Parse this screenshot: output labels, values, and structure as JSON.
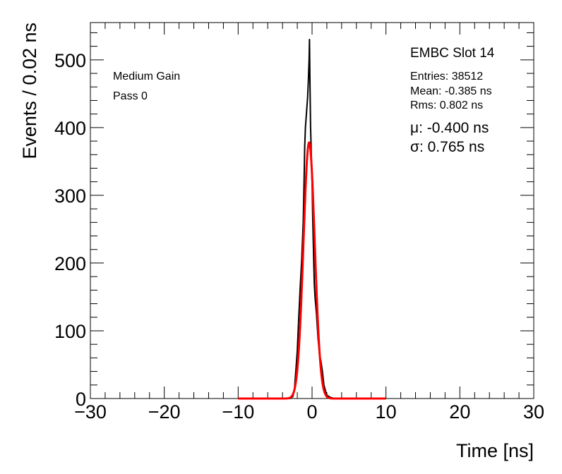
{
  "chart_data": {
    "type": "line",
    "title": "",
    "xlabel": "Time [ns]",
    "ylabel": "Events / 0.02 ns",
    "xlim": [
      -30,
      30
    ],
    "ylim": [
      0,
      555
    ],
    "x_ticks": [
      -30,
      -20,
      -10,
      0,
      10,
      20,
      30
    ],
    "x_tick_labels": [
      "−30",
      "−20",
      "−10",
      "0",
      "10",
      "20",
      "30"
    ],
    "y_ticks": [
      0,
      100,
      200,
      300,
      400,
      500
    ],
    "y_tick_labels": [
      "0",
      "100",
      "200",
      "300",
      "400",
      "500"
    ],
    "grid": false,
    "annotations": {
      "gain": "Medium Gain",
      "pass": "Pass 0",
      "slot": "EMBC Slot 14",
      "entries": "Entries: 38512",
      "mean": "Mean: -0.385 ns",
      "rms": "Rms: 0.802 ns",
      "mu": "μ: -0.400 ns",
      "sigma": "σ: 0.765 ns"
    },
    "series": [
      {
        "color": "#000000",
        "x": [
          -10,
          -3.0,
          -2.6,
          -2.4,
          -2.2,
          -2.0,
          -1.8,
          -1.6,
          -1.4,
          -1.2,
          -1.1,
          -1.0,
          -0.9,
          -0.8,
          -0.7,
          -0.6,
          -0.5,
          -0.4,
          -0.35,
          -0.3,
          -0.25,
          -0.2,
          -0.1,
          0.0,
          0.1,
          0.2,
          0.3,
          0.4,
          0.6,
          0.8,
          1.0,
          1.2,
          1.4,
          1.6,
          1.8,
          2.0,
          2.4,
          3.0,
          10
        ],
        "values": [
          0,
          0,
          3,
          12,
          40,
          70,
          120,
          165,
          205,
          260,
          310,
          370,
          400,
          415,
          430,
          445,
          470,
          500,
          530,
          480,
          440,
          400,
          360,
          320,
          260,
          215,
          170,
          150,
          125,
          90,
          65,
          55,
          40,
          20,
          12,
          5,
          2,
          0,
          0
        ]
      },
      {
        "color": "#ff0000",
        "fit": "gaussian",
        "mean": -0.4,
        "sigma": 0.765,
        "amplitude": 378,
        "x_range": [
          -10,
          10
        ]
      }
    ]
  }
}
